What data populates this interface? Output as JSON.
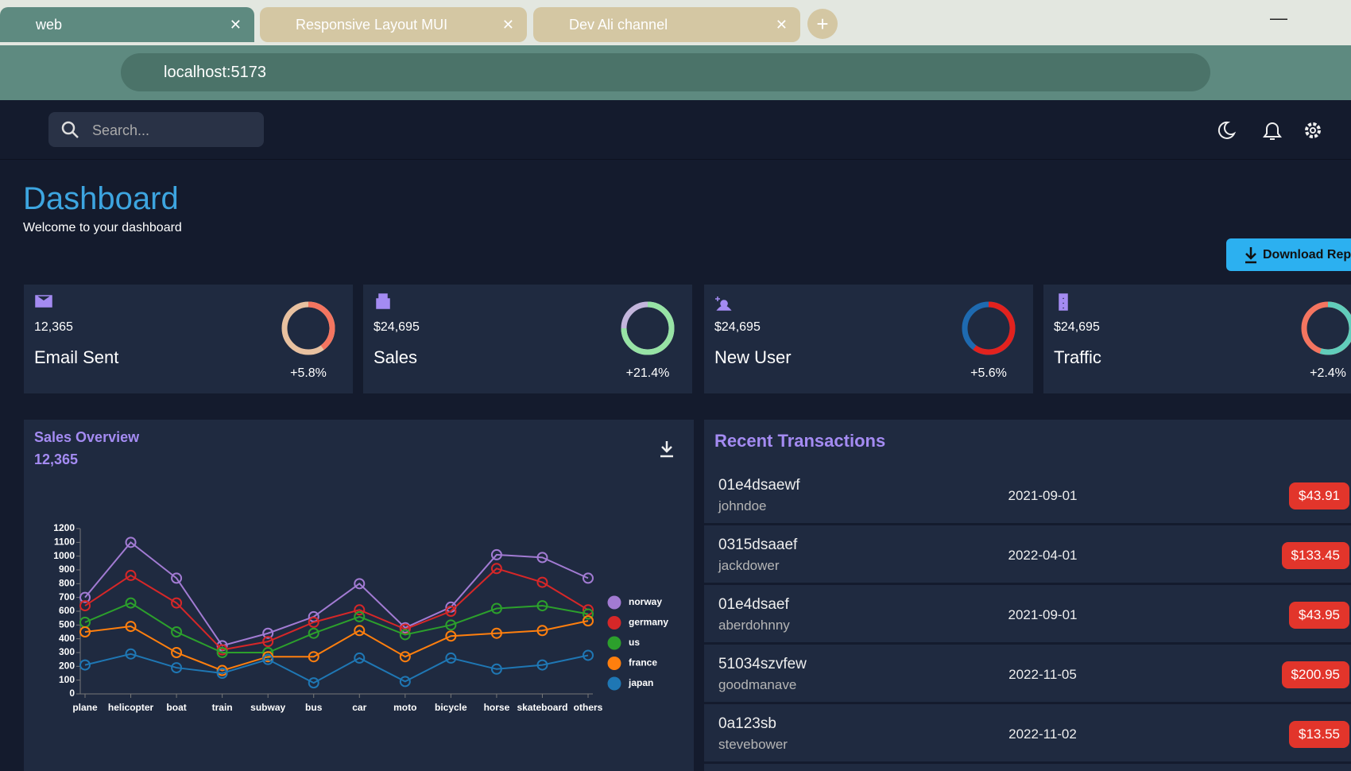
{
  "browser": {
    "tabs": [
      "web",
      "Responsive Layout MUI",
      "Dev Ali channel"
    ],
    "url": "localhost:5173"
  },
  "header": {
    "search_placeholder": "Search..."
  },
  "dashboard": {
    "title": "Dashboard",
    "subtitle": "Welcome to your dashboard",
    "button": "Download Reports"
  },
  "stats": [
    {
      "value": "12,365",
      "title": "Email Sent",
      "increase": "+5.8%",
      "progress": 0.4,
      "colors": [
        "#f47560",
        "#e8c1a0"
      ]
    },
    {
      "value": "$24,695",
      "title": "Sales",
      "increase": "+21.4%",
      "progress": 0.75,
      "colors": [
        "#97e3a5",
        "#c3b6dc"
      ]
    },
    {
      "value": "$24,695",
      "title": "New User",
      "increase": "+5.6%",
      "progress": 0.6,
      "colors": [
        "#e2221e",
        "#1e6ab0"
      ]
    },
    {
      "value": "$24,695",
      "title": "Traffic",
      "increase": "+2.4%",
      "progress": 0.55,
      "colors": [
        "#61cdbb",
        "#f47560"
      ]
    }
  ],
  "transactions": {
    "title": "Recent Transactions",
    "rows": [
      {
        "id": "01e4dsaewf",
        "user": "johndoe",
        "date": "2021-09-01",
        "cost": "$43.91"
      },
      {
        "id": "0315dsaaef",
        "user": "jackdower",
        "date": "2022-04-01",
        "cost": "$133.45"
      },
      {
        "id": "01e4dsaef",
        "user": "aberdohnny",
        "date": "2021-09-01",
        "cost": "$43.95"
      },
      {
        "id": "51034szvfew",
        "user": "goodmanave",
        "date": "2022-11-05",
        "cost": "$200.95"
      },
      {
        "id": "0a123sb",
        "user": "stevebower",
        "date": "2022-11-02",
        "cost": "$13.55"
      }
    ]
  },
  "chart_data": {
    "type": "line",
    "title": "Sales Overview",
    "subtitle": "12,365",
    "categories": [
      "plane",
      "helicopter",
      "boat",
      "train",
      "subway",
      "bus",
      "car",
      "moto",
      "bicycle",
      "horse",
      "skateboard",
      "others"
    ],
    "series": [
      {
        "name": "norway",
        "color": "#a27bd3",
        "values": [
          700,
          1100,
          840,
          350,
          440,
          560,
          800,
          480,
          630,
          1010,
          990,
          840
        ]
      },
      {
        "name": "germany",
        "color": "#d62728",
        "values": [
          640,
          860,
          660,
          320,
          380,
          520,
          610,
          470,
          600,
          910,
          810,
          610
        ]
      },
      {
        "name": "us",
        "color": "#2ca02c",
        "values": [
          520,
          660,
          450,
          300,
          300,
          440,
          560,
          430,
          500,
          620,
          640,
          580
        ]
      },
      {
        "name": "france",
        "color": "#ff7f0e",
        "values": [
          450,
          490,
          300,
          170,
          270,
          270,
          460,
          270,
          420,
          440,
          460,
          530
        ]
      },
      {
        "name": "japan",
        "color": "#1f77b4",
        "values": [
          210,
          290,
          190,
          150,
          250,
          80,
          260,
          90,
          260,
          180,
          210,
          280
        ]
      }
    ],
    "ylim": [
      0,
      1200
    ],
    "yticks": [
      0,
      100,
      200,
      300,
      400,
      500,
      600,
      700,
      800,
      900,
      1000,
      1100,
      1200
    ],
    "legend": "right"
  }
}
